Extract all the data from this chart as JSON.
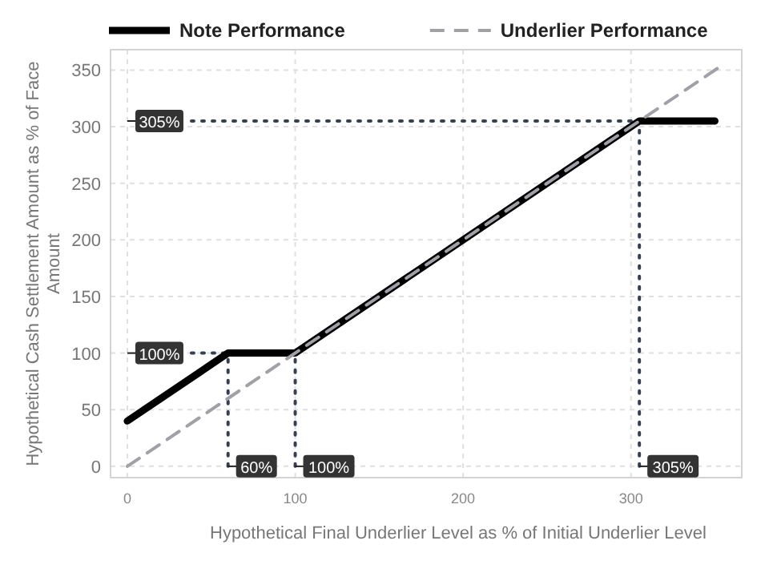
{
  "chart_data": {
    "type": "line",
    "xlabel": "Hypothetical Final Underlier Level as % of Initial Underlier Level",
    "ylabel": "Hypothetical Cash Settlement Amount as % of Face Amount",
    "series": [
      {
        "name": "Note Performance",
        "color": "#000000",
        "line_style": "solid",
        "x": [
          0,
          60,
          100,
          305,
          350
        ],
        "values": [
          40,
          100,
          100,
          305,
          305
        ]
      },
      {
        "name": "Underlier Performance",
        "color": "#a0a0a8",
        "line_style": "dashed",
        "x": [
          0,
          355
        ],
        "values": [
          0,
          355
        ]
      }
    ],
    "xlim": [
      -10,
      366
    ],
    "xticks": [
      0,
      100,
      200,
      300
    ],
    "ylim": [
      -10,
      368
    ],
    "yticks": [
      0,
      50,
      100,
      150,
      200,
      250,
      300,
      350
    ],
    "ref_lines": [
      {
        "axis": "y",
        "value": 305,
        "label": "305%",
        "color": "#34405a",
        "line_style": "dotted"
      },
      {
        "axis": "y",
        "value": 100,
        "label": "100%",
        "color": "#34405a",
        "line_style": "dotted"
      },
      {
        "axis": "x",
        "value": 60,
        "label": "60%",
        "color": "#34405a",
        "line_style": "dotted"
      },
      {
        "axis": "x",
        "value": 100,
        "label": "100%",
        "color": "#34405a",
        "line_style": "dotted"
      },
      {
        "axis": "x",
        "value": 305,
        "label": "305%",
        "color": "#34405a",
        "line_style": "dotted"
      }
    ],
    "grid": true,
    "legend": "top",
    "marker": "none"
  }
}
